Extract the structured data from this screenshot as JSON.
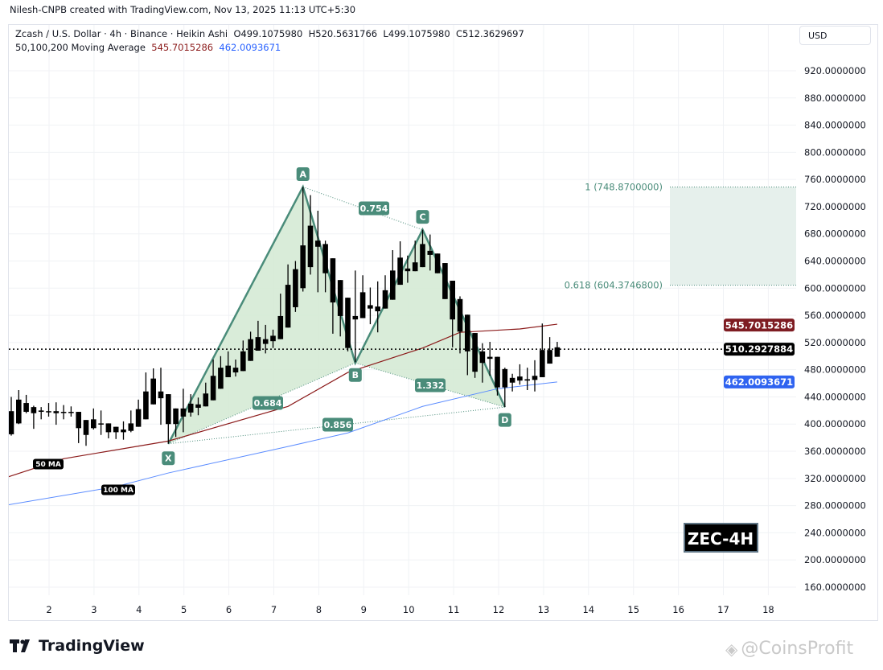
{
  "header": {
    "credit": "Nilesh-CNPB created with TradingView.com, Nov 13, 2025 11:13 UTC+5:30"
  },
  "legend": {
    "symbol": "Zcash / U.S. Dollar · 4h · Binance · Heikin Ashi",
    "open": "O499.1075980",
    "high": "H520.5631766",
    "low": "L499.1075980",
    "close": "C512.3629697",
    "ma_title": "50,100,200 Moving Average",
    "ma50_value": "545.7015286",
    "ma100_value": "462.0093671"
  },
  "currency_button": "USD",
  "branding": {
    "logo_text": "TradingView",
    "watermark": "@CoinsProfit"
  },
  "colors": {
    "ma50": "#8b1a1a",
    "ma100": "#5b8cff",
    "pattern": "#4a8c7a",
    "pattern_fill": "#d5ead5",
    "candle": "#000000",
    "target_zone": "#e6f0ec"
  },
  "chart_data": {
    "type": "candlestick",
    "chart_style": "Heikin Ashi",
    "interval": "4h",
    "x_tick_labels": [
      "2",
      "3",
      "4",
      "5",
      "6",
      "7",
      "8",
      "9",
      "10",
      "11",
      "12",
      "13",
      "14",
      "15",
      "16",
      "17",
      "18"
    ],
    "y_tick_labels": [
      "920.0000000",
      "880.0000000",
      "840.0000000",
      "800.0000000",
      "760.0000000",
      "720.0000000",
      "680.0000000",
      "640.0000000",
      "600.0000000",
      "560.0000000",
      "520.0000000",
      "480.0000000",
      "440.0000000",
      "400.0000000",
      "360.0000000",
      "320.0000000",
      "280.0000000",
      "240.0000000",
      "200.0000000",
      "160.0000000"
    ],
    "ylim": [
      160,
      920
    ],
    "grid": true,
    "candles_ohlc": [
      [
        419,
        440,
        383,
        385
      ],
      [
        401,
        450,
        400,
        436
      ],
      [
        431,
        443,
        416,
        418
      ],
      [
        425,
        427,
        393,
        416
      ],
      [
        418,
        425,
        407,
        420
      ],
      [
        418,
        431,
        411,
        419
      ],
      [
        419,
        432,
        399,
        416
      ],
      [
        417,
        428,
        407,
        418
      ],
      [
        418,
        426,
        411,
        418
      ],
      [
        418,
        418,
        372,
        394
      ],
      [
        406,
        406,
        368,
        384
      ],
      [
        394,
        423,
        392,
        407
      ],
      [
        401,
        420,
        384,
        401
      ],
      [
        401,
        401,
        379,
        388
      ],
      [
        396,
        396,
        378,
        388
      ],
      [
        392,
        404,
        377,
        388
      ],
      [
        390,
        420,
        388,
        401
      ],
      [
        396,
        436,
        396,
        422
      ],
      [
        407,
        476,
        407,
        448
      ],
      [
        429,
        482,
        429,
        467
      ],
      [
        448,
        483,
        399,
        438
      ],
      [
        444,
        444,
        371,
        400
      ],
      [
        400,
        423,
        381,
        423
      ],
      [
        411,
        452,
        388,
        423
      ],
      [
        417,
        444,
        411,
        430
      ],
      [
        424,
        439,
        413,
        429
      ],
      [
        426,
        461,
        426,
        445
      ],
      [
        435,
        495,
        435,
        471
      ],
      [
        452,
        500,
        452,
        483
      ],
      [
        469,
        507,
        469,
        486
      ],
      [
        476,
        495,
        470,
        483
      ],
      [
        478,
        523,
        478,
        507
      ],
      [
        493,
        536,
        493,
        525
      ],
      [
        508,
        552,
        508,
        528
      ],
      [
        518,
        546,
        504,
        525
      ],
      [
        522,
        539,
        512,
        530
      ],
      [
        525,
        592,
        525,
        559
      ],
      [
        542,
        635,
        542,
        605
      ],
      [
        572,
        640,
        565,
        628
      ],
      [
        600,
        749,
        595,
        663
      ],
      [
        631,
        737,
        620,
        692
      ],
      [
        670,
        714,
        594,
        661
      ],
      [
        665,
        670,
        594,
        622
      ],
      [
        644,
        644,
        533,
        579
      ],
      [
        612,
        612,
        529,
        559
      ],
      [
        586,
        586,
        507,
        512
      ],
      [
        559,
        626,
        491,
        554
      ],
      [
        556,
        619,
        556,
        594
      ],
      [
        570,
        601,
        547,
        575
      ],
      [
        566,
        610,
        535,
        573
      ],
      [
        570,
        619,
        570,
        597
      ],
      [
        583,
        656,
        583,
        626
      ],
      [
        605,
        669,
        605,
        645
      ],
      [
        625,
        648,
        608,
        629
      ],
      [
        625,
        670,
        625,
        638
      ],
      [
        631,
        686,
        631,
        665
      ],
      [
        655,
        679,
        626,
        649
      ],
      [
        651,
        651,
        622,
        622
      ],
      [
        637,
        637,
        584,
        584
      ],
      [
        611,
        611,
        513,
        554
      ],
      [
        584,
        588,
        504,
        536
      ],
      [
        561,
        561,
        472,
        507
      ],
      [
        534,
        534,
        468,
        477
      ],
      [
        507,
        519,
        461,
        490
      ],
      [
        499,
        521,
        471,
        496
      ],
      [
        499,
        499,
        442,
        454
      ],
      [
        481,
        483,
        425,
        454
      ],
      [
        468,
        474,
        448,
        461
      ],
      [
        470,
        488,
        458,
        464
      ],
      [
        466,
        483,
        450,
        464
      ],
      [
        471,
        494,
        448,
        465
      ],
      [
        469,
        548,
        469,
        509
      ],
      [
        489,
        528,
        489,
        509
      ],
      [
        499,
        521,
        499,
        513
      ]
    ],
    "ma50": {
      "label": "50 MA",
      "points": [
        [
          -0.5,
          322
        ],
        [
          7,
          349
        ],
        [
          21,
          375
        ],
        [
          37,
          426
        ],
        [
          45,
          476
        ],
        [
          55,
          512
        ],
        [
          60,
          535
        ],
        [
          68,
          540
        ],
        [
          73,
          547
        ]
      ],
      "last_value": "545.7015286"
    },
    "ma100": {
      "label": "100 MA",
      "points": [
        [
          -0.5,
          281
        ],
        [
          14,
          308
        ],
        [
          21,
          328
        ],
        [
          37,
          367
        ],
        [
          45,
          387
        ],
        [
          55,
          426
        ],
        [
          65,
          452
        ],
        [
          73,
          462
        ]
      ],
      "last_value": "462.0093671"
    },
    "last_price": {
      "value": 510.2927884,
      "label": "510.2927884"
    },
    "harmonic_pattern": {
      "points": [
        {
          "label": "X",
          "index": 21,
          "price": 371
        },
        {
          "label": "A",
          "index": 39,
          "price": 749
        },
        {
          "label": "B",
          "index": 46,
          "price": 490
        },
        {
          "label": "C",
          "index": 55,
          "price": 686
        },
        {
          "label": "D",
          "index": 66,
          "price": 425
        }
      ],
      "ratios": [
        {
          "value": "0.684",
          "between": "X-B"
        },
        {
          "value": "0.754",
          "between": "A-C"
        },
        {
          "value": "1.332",
          "between": "B-D"
        },
        {
          "value": "0.856",
          "between": "X-D"
        }
      ]
    },
    "target_zone": {
      "top_label": "1 (748.8700000)",
      "top": 748.87,
      "bottom_label": "0.618 (604.3746800)",
      "bottom": 604.37468
    },
    "annotation": "ZEC-4H"
  }
}
